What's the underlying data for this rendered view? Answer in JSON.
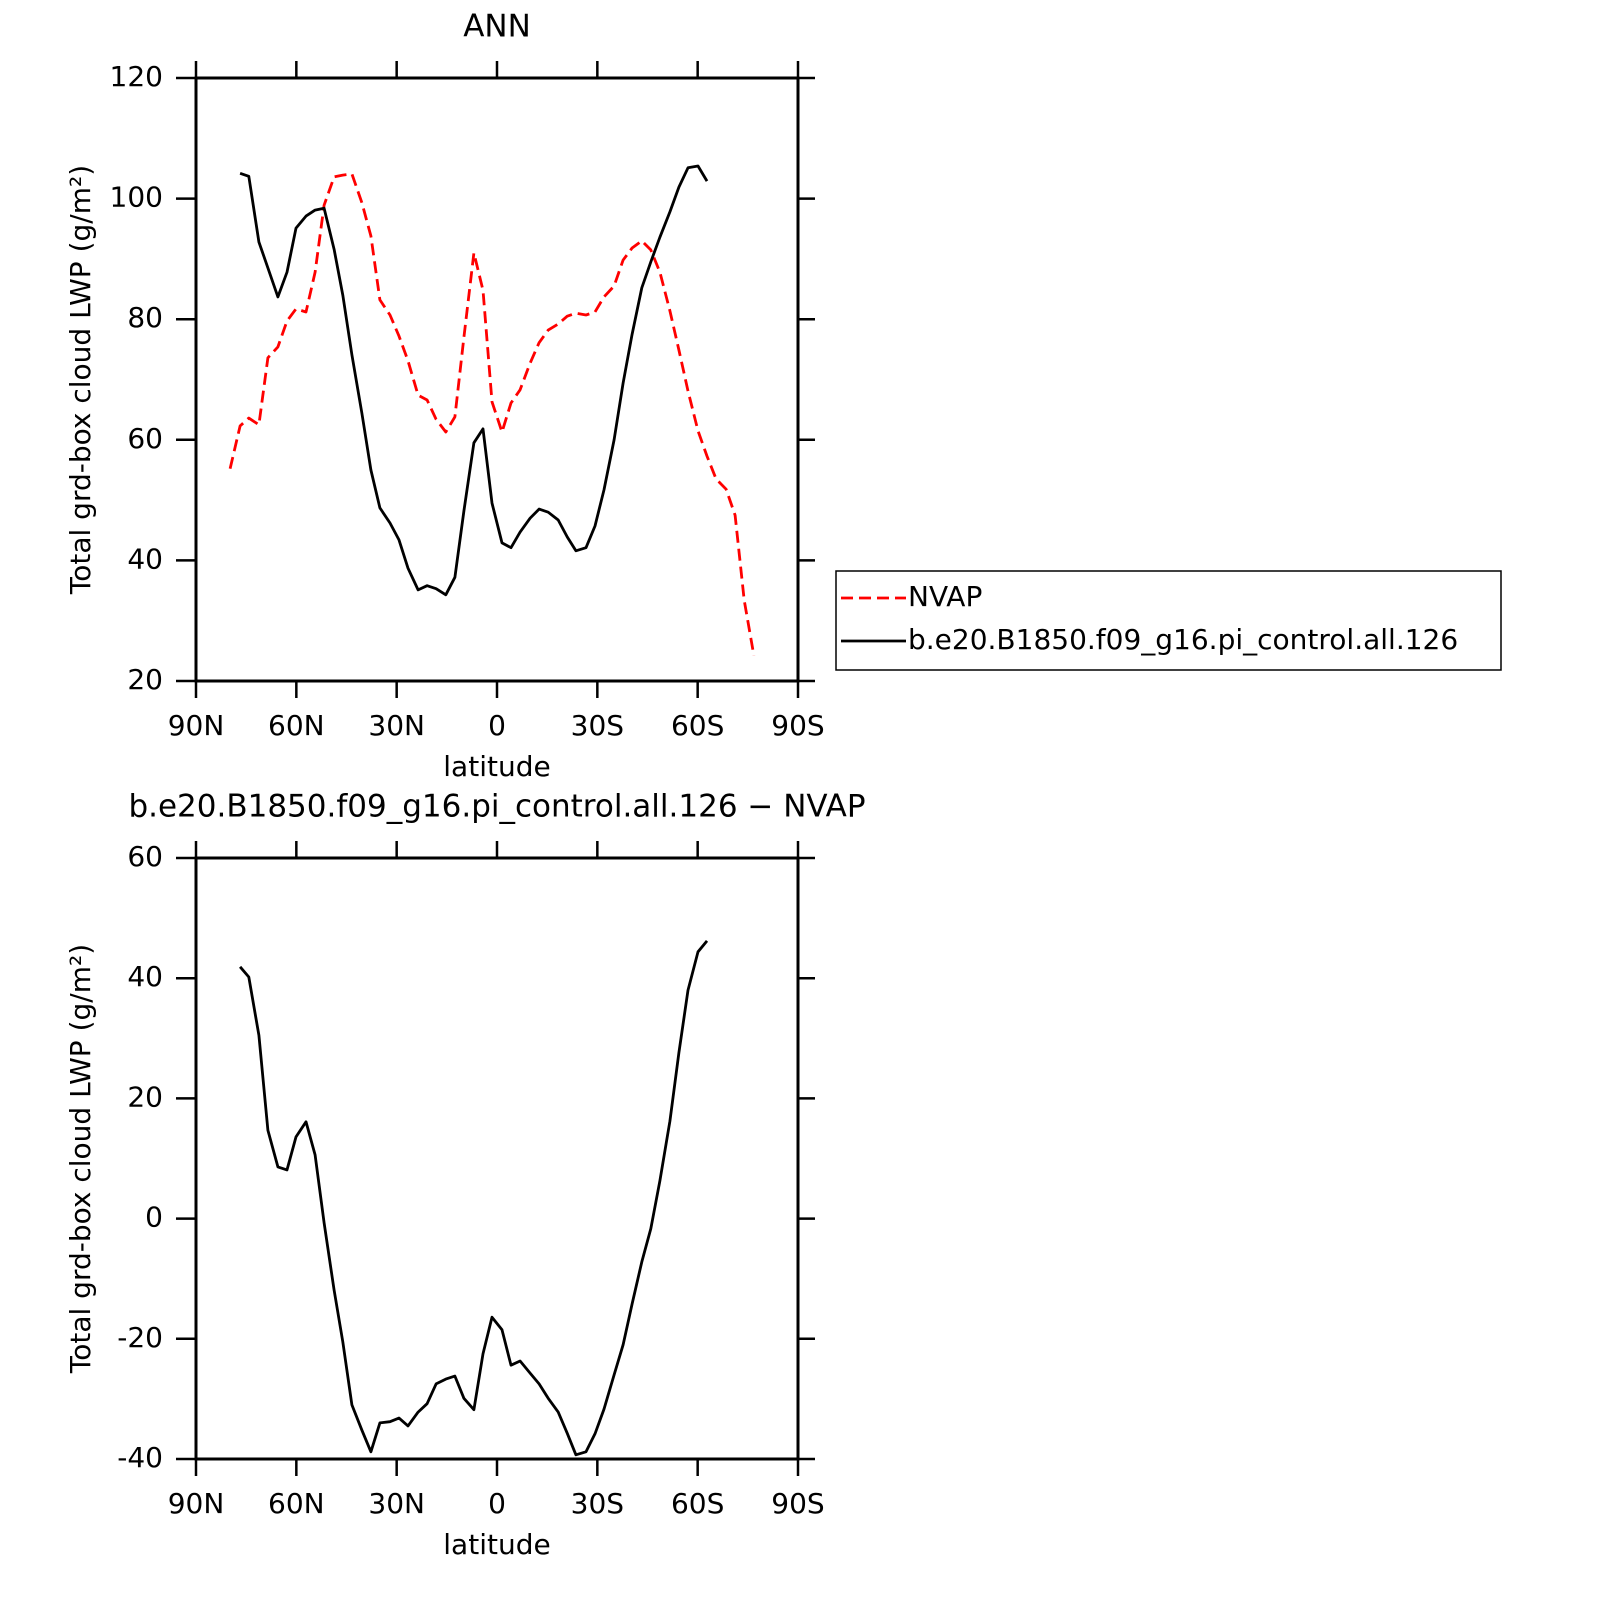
{
  "chart_data": [
    {
      "type": "line",
      "title": "ANN",
      "xlabel": "latitude",
      "ylabel": "Total grd-box cloud LWP (g/m²)",
      "xlim": [
        90,
        -90
      ],
      "xticks": [
        {
          "value": 90,
          "label": "90N"
        },
        {
          "value": 60,
          "label": "60N"
        },
        {
          "value": 30,
          "label": "30N"
        },
        0,
        {
          "value": -30,
          "label": "30S"
        },
        {
          "value": -60,
          "label": "60S"
        },
        {
          "value": -90,
          "label": "90S"
        }
      ],
      "ylim": [
        20,
        120
      ],
      "yticks": [
        20,
        40,
        60,
        80,
        100,
        120
      ],
      "x": [
        79.8,
        76.8,
        74.2,
        71.2,
        68.5,
        65.5,
        62.8,
        60.1,
        57.1,
        54.4,
        51.7,
        48.7,
        46.1,
        43.4,
        40.4,
        37.7,
        35.0,
        32.0,
        29.3,
        26.6,
        23.6,
        20.9,
        18.2,
        15.3,
        12.6,
        9.9,
        6.9,
        4.2,
        1.5,
        -1.5,
        -4.2,
        -6.9,
        -9.9,
        -12.6,
        -15.3,
        -18.3,
        -21.0,
        -23.6,
        -26.6,
        -29.3,
        -32.0,
        -35.0,
        -37.7,
        -40.4,
        -43.3,
        -46.0,
        -48.7,
        -51.7,
        -54.4,
        -57.1,
        -60.1,
        -62.8,
        -65.5,
        -68.5,
        -71.2,
        -73.9,
        -76.8
      ],
      "series": [
        {
          "name": "NVAP",
          "color": "#ff0000",
          "dashed": true,
          "values": [
            55.2,
            62.3,
            63.6,
            62.5,
            73.6,
            75.4,
            79.7,
            81.7,
            81.2,
            87.8,
            98.9,
            103.6,
            103.9,
            104.1,
            99.3,
            93.8,
            83.2,
            80.7,
            77.2,
            73.1,
            67.4,
            66.6,
            63.4,
            61.3,
            63.8,
            77.0,
            91.0,
            84.8,
            66.3,
            61.3,
            66.1,
            68.3,
            72.7,
            76.1,
            78.2,
            79.2,
            80.5,
            81.0,
            80.7,
            81.2,
            83.7,
            85.5,
            89.8,
            91.8,
            93.0,
            91.5,
            87.8,
            81.4,
            74.9,
            68.1,
            61.5,
            57.3,
            53.5,
            51.8,
            47.5,
            33.4,
            24.2
          ]
        },
        {
          "name": "b.e20.B1850.f09_g16.pi_control.all.126",
          "color": "#000000",
          "dashed": false,
          "values": [
            null,
            104.2,
            103.7,
            92.8,
            88.5,
            83.7,
            87.8,
            95.1,
            97.1,
            98.1,
            98.4,
            91.6,
            84.0,
            74.1,
            64.4,
            55.0,
            48.7,
            46.2,
            43.4,
            38.7,
            35.1,
            35.8,
            35.3,
            34.3,
            37.2,
            48.2,
            59.5,
            61.8,
            49.5,
            42.9,
            42.1,
            44.7,
            47.0,
            48.5,
            48.0,
            46.7,
            43.9,
            41.6,
            42.1,
            45.7,
            51.7,
            60.0,
            69.4,
            77.5,
            85.2,
            89.5,
            93.6,
            97.8,
            101.9,
            105.1,
            105.4,
            102.9,
            null,
            null,
            null,
            null,
            null
          ]
        }
      ]
    },
    {
      "type": "line",
      "title": "b.e20.B1850.f09_g16.pi_control.all.126 − NVAP",
      "xlabel": "latitude",
      "ylabel": "Total grd-box cloud LWP (g/m²)",
      "xlim": [
        90,
        -90
      ],
      "xticks": [
        {
          "value": 90,
          "label": "90N"
        },
        {
          "value": 60,
          "label": "60N"
        },
        {
          "value": 30,
          "label": "30N"
        },
        0,
        {
          "value": -30,
          "label": "30S"
        },
        {
          "value": -60,
          "label": "60S"
        },
        {
          "value": -90,
          "label": "90S"
        }
      ],
      "ylim": [
        -40,
        60
      ],
      "yticks": [
        -40,
        -20,
        0,
        20,
        40,
        60
      ],
      "x": [
        76.8,
        74.2,
        71.2,
        68.5,
        65.5,
        62.8,
        60.1,
        57.1,
        54.4,
        51.7,
        48.7,
        46.1,
        43.4,
        40.4,
        37.7,
        35.0,
        32.0,
        29.3,
        26.6,
        23.6,
        20.9,
        18.2,
        15.3,
        12.6,
        9.9,
        6.9,
        4.2,
        1.5,
        -1.5,
        -4.2,
        -6.9,
        -9.9,
        -12.6,
        -15.3,
        -18.3,
        -21.0,
        -23.6,
        -26.6,
        -29.3,
        -32.0,
        -35.0,
        -37.7,
        -40.4,
        -43.3,
        -46.0,
        -48.7,
        -51.7,
        -54.4,
        -57.1,
        -60.1,
        -62.8
      ],
      "color": "#000000",
      "values": [
        41.9,
        40.2,
        30.5,
        14.7,
        8.6,
        8.1,
        13.6,
        16.1,
        10.6,
        -0.7,
        -11.9,
        -20.5,
        -31.0,
        -35.2,
        -38.8,
        -34.0,
        -33.8,
        -33.2,
        -34.5,
        -32.2,
        -30.8,
        -27.5,
        -26.7,
        -26.2,
        -29.9,
        -31.8,
        -22.5,
        -16.4,
        -18.5,
        -24.4,
        -23.7,
        -25.7,
        -27.5,
        -29.9,
        -32.2,
        -35.7,
        -39.3,
        -38.8,
        -35.8,
        -31.7,
        -26.0,
        -21.0,
        -14.2,
        -7.2,
        -1.7,
        6.3,
        16.2,
        27.6,
        38.0,
        44.4,
        46.2
      ]
    }
  ]
}
